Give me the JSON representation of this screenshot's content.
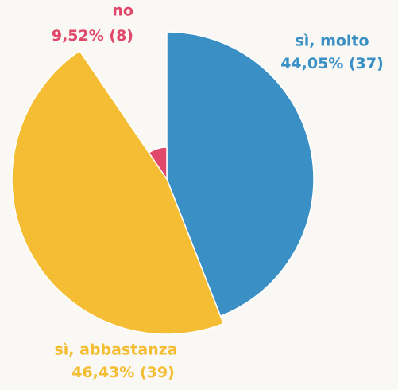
{
  "chart_data": {
    "type": "pie",
    "categories": [
      "sì, molto",
      "sì, abbastanza",
      "no"
    ],
    "values": [
      44.05,
      46.43,
      9.52
    ],
    "value_labels": [
      "44,05%",
      "46,43%",
      "9,52%"
    ],
    "counts": [
      37,
      39,
      8
    ],
    "count_labels": [
      "(37)",
      "(39)",
      "(8)"
    ],
    "colors": [
      "#3a8fc4",
      "#f4bd33",
      "#e0486a"
    ]
  }
}
